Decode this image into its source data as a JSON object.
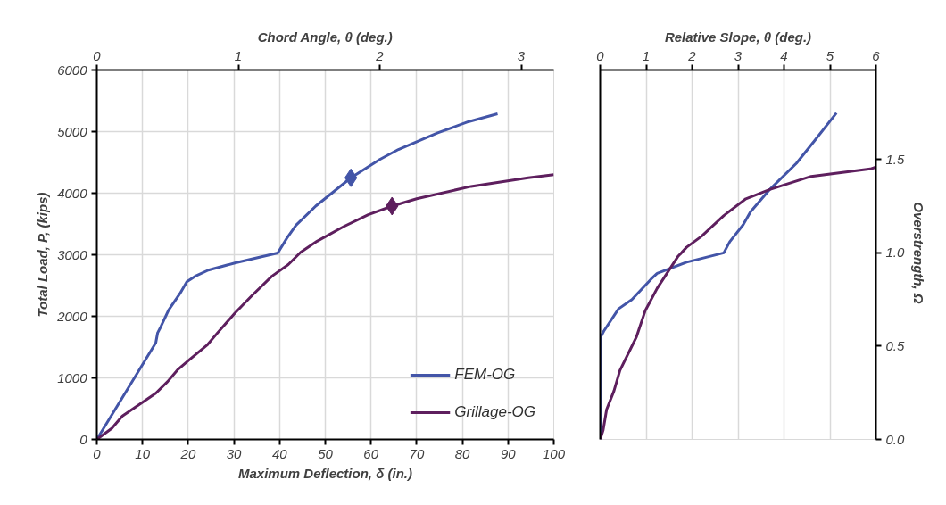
{
  "chart_data": [
    {
      "type": "line",
      "xlabel": "Maximum Deflection, δ (in.)",
      "ylabel": "Total Load, P, (kips)",
      "x2label": "Chord Angle, θ (deg.)",
      "xlim": [
        0,
        100
      ],
      "xticks": [
        0,
        10,
        20,
        30,
        40,
        50,
        60,
        70,
        80,
        90,
        100
      ],
      "ylim": [
        0,
        6000
      ],
      "yticks": [
        0,
        1000,
        2000,
        3000,
        4000,
        5000,
        6000
      ],
      "x2lim": [
        0,
        3.23
      ],
      "x2ticks": [
        0,
        1,
        2,
        3
      ],
      "grid": true,
      "legend": "bottom right",
      "line_style": "solid",
      "series": [
        {
          "name": "FEM-OG",
          "color": "#4355a8",
          "x": [
            0,
            12.9,
            13.3,
            14,
            15.7,
            18.2,
            19.7,
            21.5,
            24.4,
            30.4,
            39.6,
            41.6,
            43.6,
            47.9,
            55.6,
            62,
            66,
            74.6,
            81.3,
            87.7
          ],
          "values": [
            0,
            1570,
            1730,
            1830,
            2100,
            2370,
            2560,
            2650,
            2750,
            2870,
            3030,
            3270,
            3480,
            3790,
            4250,
            4550,
            4710,
            4980,
            5160,
            5290
          ]
        },
        {
          "name": "Grillage-OG",
          "color": "#5e1f5e",
          "x": [
            0,
            3.3,
            5.6,
            12.9,
            15.5,
            17.8,
            20.5,
            24.1,
            26.4,
            30.2,
            34,
            38.3,
            41.9,
            44.6,
            48.2,
            54.1,
            59.4,
            64.6,
            70,
            81.9,
            94.4,
            100
          ],
          "values": [
            0,
            180,
            380,
            750,
            940,
            1140,
            1310,
            1530,
            1730,
            2050,
            2340,
            2650,
            2840,
            3040,
            3220,
            3460,
            3650,
            3790,
            3910,
            4110,
            4250,
            4300
          ]
        },
        {
          "type": "scatter",
          "marker": "diamond",
          "color": "#4355a8",
          "x": [
            55.6
          ],
          "values": [
            4250
          ]
        },
        {
          "type": "scatter",
          "marker": "diamond",
          "color": "#5e1f5e",
          "x": [
            64.6
          ],
          "values": [
            3790
          ]
        }
      ]
    },
    {
      "type": "line",
      "xlabel": "Relative Slope, θ (deg.)",
      "y2label": "Overstrength,  Ω",
      "xlim": [
        0,
        6
      ],
      "xticks": [
        0,
        1,
        2,
        3,
        4,
        5,
        6
      ],
      "y2lim": [
        0,
        1.98
      ],
      "y2ticks": [
        {
          "value": 0,
          "label": "0.0"
        },
        {
          "value": 0.5,
          "label": "0.5"
        },
        {
          "value": 1,
          "label": "1.0"
        },
        {
          "value": 1.5,
          "label": "1.5"
        }
      ],
      "grid": "x",
      "legend": false,
      "line_style": "solid",
      "series": [
        {
          "axis": "y2",
          "color": "#4355a8",
          "x": [
            0,
            0.013,
            0.077,
            0.4,
            0.69,
            1.11,
            1.24,
            1.88,
            2.69,
            2.82,
            3.11,
            3.27,
            3.69,
            4.27,
            4.66,
            5.14
          ],
          "values": [
            0,
            0.55,
            0.58,
            0.7,
            0.75,
            0.86,
            0.89,
            0.95,
            1.0,
            1.06,
            1.15,
            1.22,
            1.34,
            1.48,
            1.6,
            1.75
          ]
        },
        {
          "axis": "y2",
          "color": "#5e1f5e",
          "x": [
            0,
            0.065,
            0.14,
            0.3,
            0.43,
            0.79,
            0.98,
            1.24,
            1.69,
            1.88,
            2.21,
            2.69,
            3.17,
            3.69,
            4.59,
            5.88,
            6
          ],
          "values": [
            0,
            0.05,
            0.16,
            0.26,
            0.37,
            0.55,
            0.69,
            0.81,
            0.98,
            1.03,
            1.09,
            1.2,
            1.29,
            1.34,
            1.41,
            1.45,
            1.46
          ]
        }
      ]
    }
  ]
}
